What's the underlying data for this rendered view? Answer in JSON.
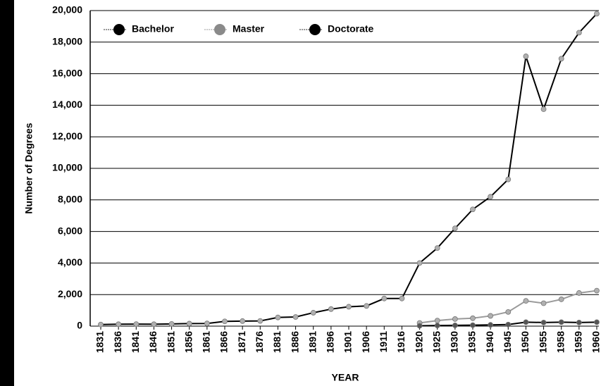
{
  "chart_data": {
    "type": "line",
    "xlabel": "YEAR",
    "ylabel": "Number of Degrees",
    "categories": [
      "1831",
      "1836",
      "1841",
      "1846",
      "1851",
      "1856",
      "1861",
      "1866",
      "1871",
      "1876",
      "1881",
      "1886",
      "1891",
      "1896",
      "1901",
      "1906",
      "1911",
      "1916",
      "1920",
      "1925",
      "1930",
      "1935",
      "1940",
      "1945",
      "1950",
      "1955",
      "1958",
      "1959",
      "1960"
    ],
    "series": [
      {
        "name": "Bachelor",
        "color": "#000000",
        "values": [
          100,
          120,
          130,
          120,
          140,
          160,
          170,
          300,
          320,
          330,
          550,
          580,
          850,
          1080,
          1230,
          1280,
          1750,
          1750,
          4000,
          4950,
          6200,
          7400,
          8200,
          9300,
          17100,
          13750,
          16950,
          18600,
          19800
        ]
      },
      {
        "name": "Master",
        "color": "#9a9a9a",
        "values": [
          null,
          null,
          null,
          null,
          null,
          null,
          null,
          null,
          null,
          null,
          null,
          null,
          null,
          null,
          null,
          null,
          null,
          null,
          200,
          350,
          450,
          500,
          650,
          900,
          1600,
          1450,
          1700,
          2100,
          2250
        ]
      },
      {
        "name": "Doctorate",
        "color": "#000000",
        "values": [
          null,
          null,
          null,
          null,
          null,
          null,
          null,
          null,
          null,
          null,
          null,
          null,
          null,
          null,
          null,
          null,
          null,
          null,
          20,
          40,
          50,
          60,
          80,
          100,
          250,
          230,
          250,
          230,
          250
        ]
      }
    ],
    "ylim": [
      0,
      20000
    ],
    "yticks": [
      0,
      {
        "value": 2000,
        "label": "2,000"
      },
      {
        "value": 4000,
        "label": "4,000"
      },
      {
        "value": 6000,
        "label": "6,000"
      },
      {
        "value": 8000,
        "label": "8,000"
      },
      {
        "value": 10000,
        "label": "10,000"
      },
      {
        "value": 12000,
        "label": "12,000"
      },
      {
        "value": 14000,
        "label": "14,000"
      },
      {
        "value": 16000,
        "label": "16,000"
      },
      {
        "value": 18000,
        "label": "18,000"
      },
      {
        "value": 20000,
        "label": "20,000"
      }
    ],
    "grid": true,
    "legend": "top-left"
  }
}
